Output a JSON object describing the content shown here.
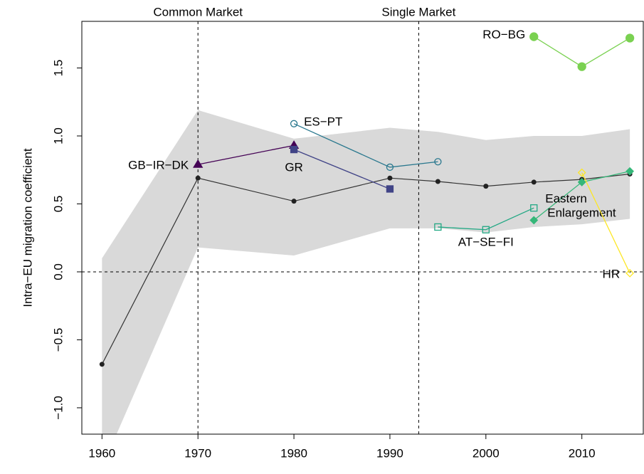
{
  "chart_data": {
    "type": "line",
    "ylabel": "Intra−EU migration coefficient",
    "xlim": [
      1957.9,
      2016.4
    ],
    "ylim": [
      -1.194,
      1.843
    ],
    "xticks": [
      1960,
      1970,
      1980,
      1990,
      2000,
      2010
    ],
    "yticks": [
      {
        "value": -1,
        "label": "−1.0"
      },
      {
        "value": -0.5,
        "label": "−0.5"
      },
      {
        "value": 0,
        "label": "0.0"
      },
      0.5,
      {
        "value": 1,
        "label": "1.0"
      },
      1.5
    ],
    "vlines": [
      {
        "x": 1970,
        "label": "Common Market"
      },
      {
        "x": 1993,
        "label": "Single Market"
      }
    ],
    "hline": 0,
    "band": {
      "color": "#d9d9d9",
      "x": [
        1960,
        1970,
        1980,
        1990,
        1995,
        2000,
        2005,
        2010,
        2015
      ],
      "upper": [
        0.1,
        1.19,
        0.98,
        1.06,
        1.03,
        0.97,
        1.0,
        1.0,
        1.05
      ],
      "lower": [
        -1.44,
        0.18,
        0.12,
        0.32,
        0.32,
        0.29,
        0.33,
        0.35,
        0.39
      ]
    },
    "mean": {
      "color": "#333333",
      "x": [
        1960,
        1970,
        1980,
        1990,
        1995,
        2000,
        2005,
        2010,
        2015
      ],
      "values": [
        -0.68,
        0.69,
        0.52,
        0.69,
        0.665,
        0.63,
        0.66,
        0.68,
        0.72
      ]
    },
    "series": [
      {
        "name": "GB−IR−DK",
        "color": "#440154",
        "marker": "triangle",
        "filled": true,
        "x": [
          1970,
          1980
        ],
        "values": [
          0.79,
          0.93
        ]
      },
      {
        "name": "GR",
        "color": "#414487",
        "marker": "square",
        "filled": true,
        "x": [
          1980,
          1990
        ],
        "values": [
          0.9,
          0.61
        ]
      },
      {
        "name": "ES−PT",
        "color": "#2A788E",
        "marker": "circle",
        "filled": false,
        "x": [
          1980,
          1990,
          1995
        ],
        "values": [
          1.09,
          0.77,
          0.81
        ]
      },
      {
        "name": "AT−SE−FI",
        "color": "#22A884",
        "marker": "square",
        "filled": false,
        "x": [
          1995,
          2000,
          2005
        ],
        "values": [
          0.33,
          0.31,
          0.47
        ]
      },
      {
        "name": "Eastern Enlargement",
        "color": "#35B779",
        "marker": "diamond",
        "filled": true,
        "x": [
          2005,
          2010,
          2015
        ],
        "values": [
          0.38,
          0.66,
          0.74
        ]
      },
      {
        "name": "RO−BG",
        "color": "#7AD151",
        "marker": "circle",
        "filled": true,
        "big": true,
        "x": [
          2005,
          2010,
          2015
        ],
        "values": [
          1.73,
          1.51,
          1.72
        ]
      },
      {
        "name": "HR",
        "color": "#FDE725",
        "marker": "diamond",
        "filled": false,
        "x": [
          2010,
          2015
        ],
        "values": [
          0.73,
          -0.01
        ]
      }
    ]
  }
}
